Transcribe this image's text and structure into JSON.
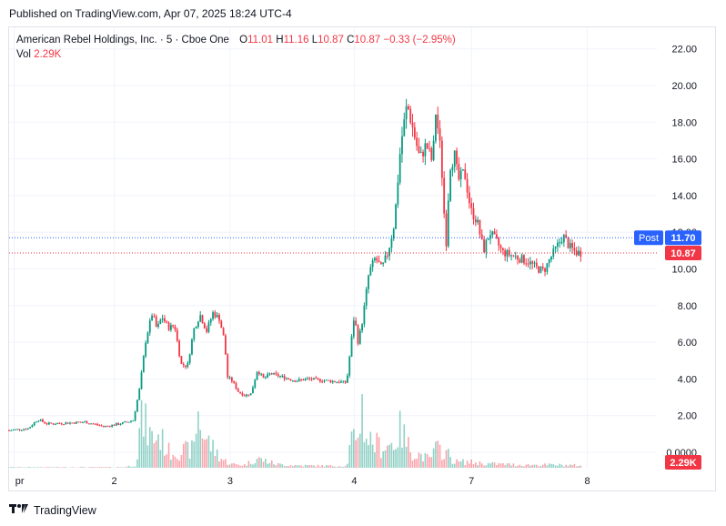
{
  "header": {
    "published": "Published on TradingView.com, Apr 07, 2025 18:24 UTC-4"
  },
  "legend": {
    "symbol": "American Rebel Holdings, Inc. · 5 · Cboe One",
    "o_label": "O",
    "o_value": "11.01",
    "h_label": "H",
    "h_value": "11.16",
    "l_label": "L",
    "l_value": "10.87",
    "c_label": "C",
    "c_value": "10.87",
    "change": "−0.33 (−2.95%)",
    "vol_label": "Vol",
    "vol_value": "2.29K"
  },
  "badges": {
    "post_label": "Post",
    "post_price": "11.70",
    "last_price": "10.87",
    "volume": "2.29K"
  },
  "colors": {
    "up": "#089981",
    "down": "#f23645",
    "post": "#2962ff",
    "grid": "#f0f3fa"
  },
  "footer": {
    "brand": "TradingView"
  },
  "chart_data": {
    "type": "candlestick",
    "title": "American Rebel Holdings, Inc. · 5 · Cboe One",
    "y_ticks": [
      "22.00",
      "20.00",
      "18.00",
      "16.00",
      "14.00",
      "12.00",
      "10.00",
      "8.00",
      "6.00",
      "4.00",
      "2.00",
      "0.0000"
    ],
    "y_tick_values": [
      22,
      20,
      18,
      16,
      14,
      12,
      10,
      8,
      6,
      4,
      2,
      0
    ],
    "ylim": [
      -1,
      23
    ],
    "x_ticks": [
      "pr",
      "2",
      "3",
      "4",
      "7",
      "8"
    ],
    "x_range": [
      0,
      100
    ],
    "x_tick_positions": [
      0.8,
      16.5,
      34.7,
      54.2,
      72.6,
      90.8
    ],
    "post_market_price": 11.7,
    "last_close": 10.87,
    "price_path": [
      [
        0,
        1.2
      ],
      [
        3,
        1.3
      ],
      [
        4.5,
        1.8
      ],
      [
        6,
        1.55
      ],
      [
        9,
        1.6
      ],
      [
        12,
        1.65
      ],
      [
        15,
        1.4
      ],
      [
        18,
        1.6
      ],
      [
        19.5,
        1.75
      ],
      [
        20.5,
        3.5
      ],
      [
        21.5,
        6.2
      ],
      [
        22.5,
        7.6
      ],
      [
        23.2,
        6.7
      ],
      [
        24,
        7.4
      ],
      [
        25,
        6.8
      ],
      [
        26,
        6.9
      ],
      [
        27,
        4.8
      ],
      [
        28,
        4.7
      ],
      [
        29,
        6.7
      ],
      [
        30,
        7.5
      ],
      [
        31,
        6.6
      ],
      [
        32,
        7.6
      ],
      [
        33,
        7.3
      ],
      [
        33.8,
        6.1
      ],
      [
        34.3,
        4.1
      ],
      [
        35,
        3.9
      ],
      [
        36,
        3.3
      ],
      [
        37,
        3.1
      ],
      [
        38,
        3.2
      ],
      [
        39,
        4.5
      ],
      [
        40,
        4.0
      ],
      [
        41,
        4.3
      ],
      [
        43,
        4.1
      ],
      [
        45,
        3.9
      ],
      [
        47,
        4.0
      ],
      [
        50,
        3.9
      ],
      [
        53,
        3.8
      ],
      [
        54.2,
        7.5
      ],
      [
        54.8,
        6.0
      ],
      [
        55.5,
        7.2
      ],
      [
        56.5,
        9.8
      ],
      [
        57.5,
        10.6
      ],
      [
        58.5,
        10.0
      ],
      [
        59.5,
        10.9
      ],
      [
        60.5,
        12.5
      ],
      [
        61.5,
        16.8
      ],
      [
        62.5,
        19.0
      ],
      [
        63.5,
        17.5
      ],
      [
        64.5,
        16.0
      ],
      [
        65.5,
        16.8
      ],
      [
        66.5,
        15.8
      ],
      [
        67,
        18.6
      ],
      [
        67.8,
        16.3
      ],
      [
        68.6,
        11.2
      ],
      [
        69.2,
        15.6
      ],
      [
        70,
        16.2
      ],
      [
        70.5,
        14.8
      ],
      [
        71.5,
        15.3
      ],
      [
        72.5,
        13.2
      ],
      [
        73.5,
        12.6
      ],
      [
        74.5,
        11.0
      ],
      [
        75.5,
        12.0
      ],
      [
        76.5,
        11.5
      ],
      [
        77.5,
        10.9
      ],
      [
        78.5,
        10.8
      ],
      [
        80,
        10.6
      ],
      [
        81.5,
        10.4
      ],
      [
        83,
        10.0
      ],
      [
        84,
        9.9
      ],
      [
        85,
        10.6
      ],
      [
        86,
        11.2
      ],
      [
        87,
        11.8
      ],
      [
        88,
        11.2
      ],
      [
        89,
        10.9
      ],
      [
        90,
        10.87
      ]
    ],
    "volume_path": [
      [
        0,
        0.05
      ],
      [
        18,
        0.05
      ],
      [
        20,
        0.25
      ],
      [
        20.6,
        3.8
      ],
      [
        21.2,
        4.0
      ],
      [
        21.8,
        3.1
      ],
      [
        22.5,
        2.5
      ],
      [
        23.5,
        2.8
      ],
      [
        25,
        1.4
      ],
      [
        27,
        1.4
      ],
      [
        29,
        1.6
      ],
      [
        29.6,
        4.9
      ],
      [
        30.5,
        2.8
      ],
      [
        32,
        1.7
      ],
      [
        33.5,
        0.7
      ],
      [
        35,
        0.3
      ],
      [
        37,
        0.25
      ],
      [
        39,
        0.8
      ],
      [
        42,
        0.3
      ],
      [
        45,
        0.2
      ],
      [
        53,
        0.15
      ],
      [
        53.8,
        2.5
      ],
      [
        54.5,
        1.8
      ],
      [
        55.3,
        5.7
      ],
      [
        56,
        2.8
      ],
      [
        57,
        2.2
      ],
      [
        58.5,
        1.8
      ],
      [
        60.5,
        2.1
      ],
      [
        61.5,
        3.3
      ],
      [
        62.5,
        2.0
      ],
      [
        63.5,
        1.3
      ],
      [
        64.5,
        1.1
      ],
      [
        66,
        0.7
      ],
      [
        67,
        1.6
      ],
      [
        68.5,
        1.4
      ],
      [
        70,
        0.5
      ],
      [
        72,
        0.5
      ],
      [
        75,
        0.35
      ],
      [
        80,
        0.25
      ],
      [
        85,
        0.25
      ],
      [
        90,
        0.2
      ]
    ],
    "volume_ylim": [
      0,
      7.5
    ]
  }
}
